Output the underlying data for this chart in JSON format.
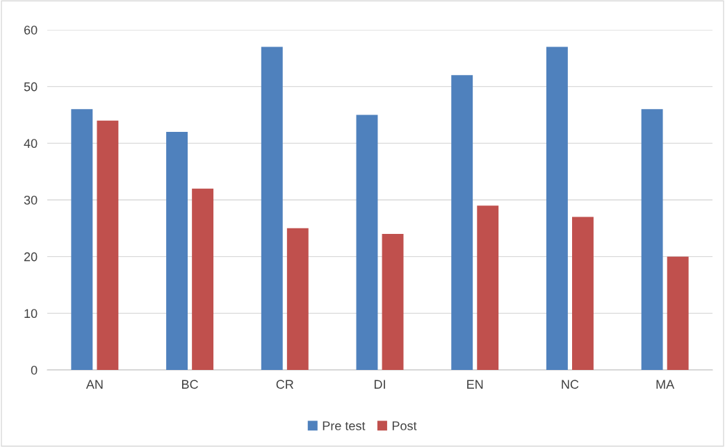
{
  "chart_data": {
    "type": "bar",
    "categories": [
      "AN",
      "BC",
      "CR",
      "DI",
      "EN",
      "NC",
      "MA"
    ],
    "series": [
      {
        "name": "Pre test",
        "color": "#4f81bd",
        "values": [
          46,
          42,
          57,
          45,
          52,
          57,
          46
        ]
      },
      {
        "name": "Post",
        "color": "#c0504d",
        "values": [
          44,
          32,
          25,
          24,
          29,
          27,
          20
        ]
      }
    ],
    "ylim": [
      0,
      60
    ],
    "yticks": [
      0,
      10,
      20,
      30,
      40,
      50,
      60
    ],
    "grid": "y",
    "legend": "bottom"
  }
}
